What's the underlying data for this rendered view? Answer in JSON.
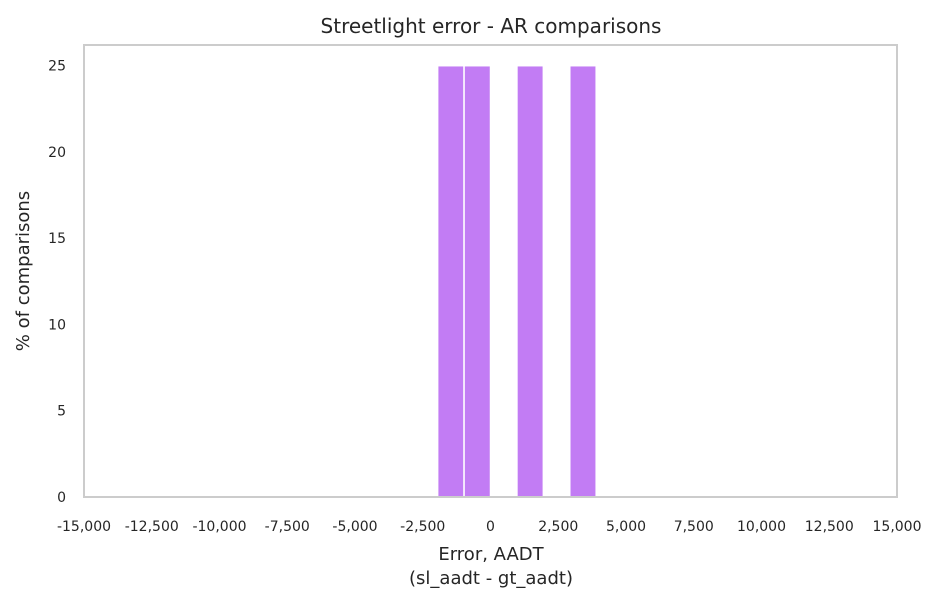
{
  "chart_data": {
    "type": "bar",
    "title": "Streetlight error - AR comparisons",
    "xlabel_line1": "Error, AADT",
    "xlabel_line2": "(sl_aadt - gt_aadt)",
    "ylabel": "% of comparisons",
    "xlim": [
      -15000,
      15000
    ],
    "ylim": [
      0,
      26.2
    ],
    "xticks": [
      -15000,
      -12500,
      -10000,
      -7500,
      -5000,
      -2500,
      0,
      2500,
      5000,
      7500,
      10000,
      12500,
      15000
    ],
    "xtick_labels": [
      "-15,000",
      "-12,500",
      "-10,000",
      "-7,500",
      "-5,000",
      "-2,500",
      "0",
      "2,500",
      "5,000",
      "7,500",
      "10,000",
      "12,500",
      "15,000"
    ],
    "yticks": [
      0,
      5,
      10,
      15,
      20,
      25
    ],
    "ytick_labels": [
      "0",
      "5",
      "10",
      "15",
      "20",
      "25"
    ],
    "bar_color": "#c27cf4",
    "bins": [
      {
        "x0": -1950,
        "x1": -975,
        "value": 25
      },
      {
        "x0": -975,
        "x1": 0,
        "value": 25
      },
      {
        "x0": 975,
        "x1": 1950,
        "value": 25
      },
      {
        "x0": 2925,
        "x1": 3900,
        "value": 25
      }
    ],
    "grid": false
  }
}
